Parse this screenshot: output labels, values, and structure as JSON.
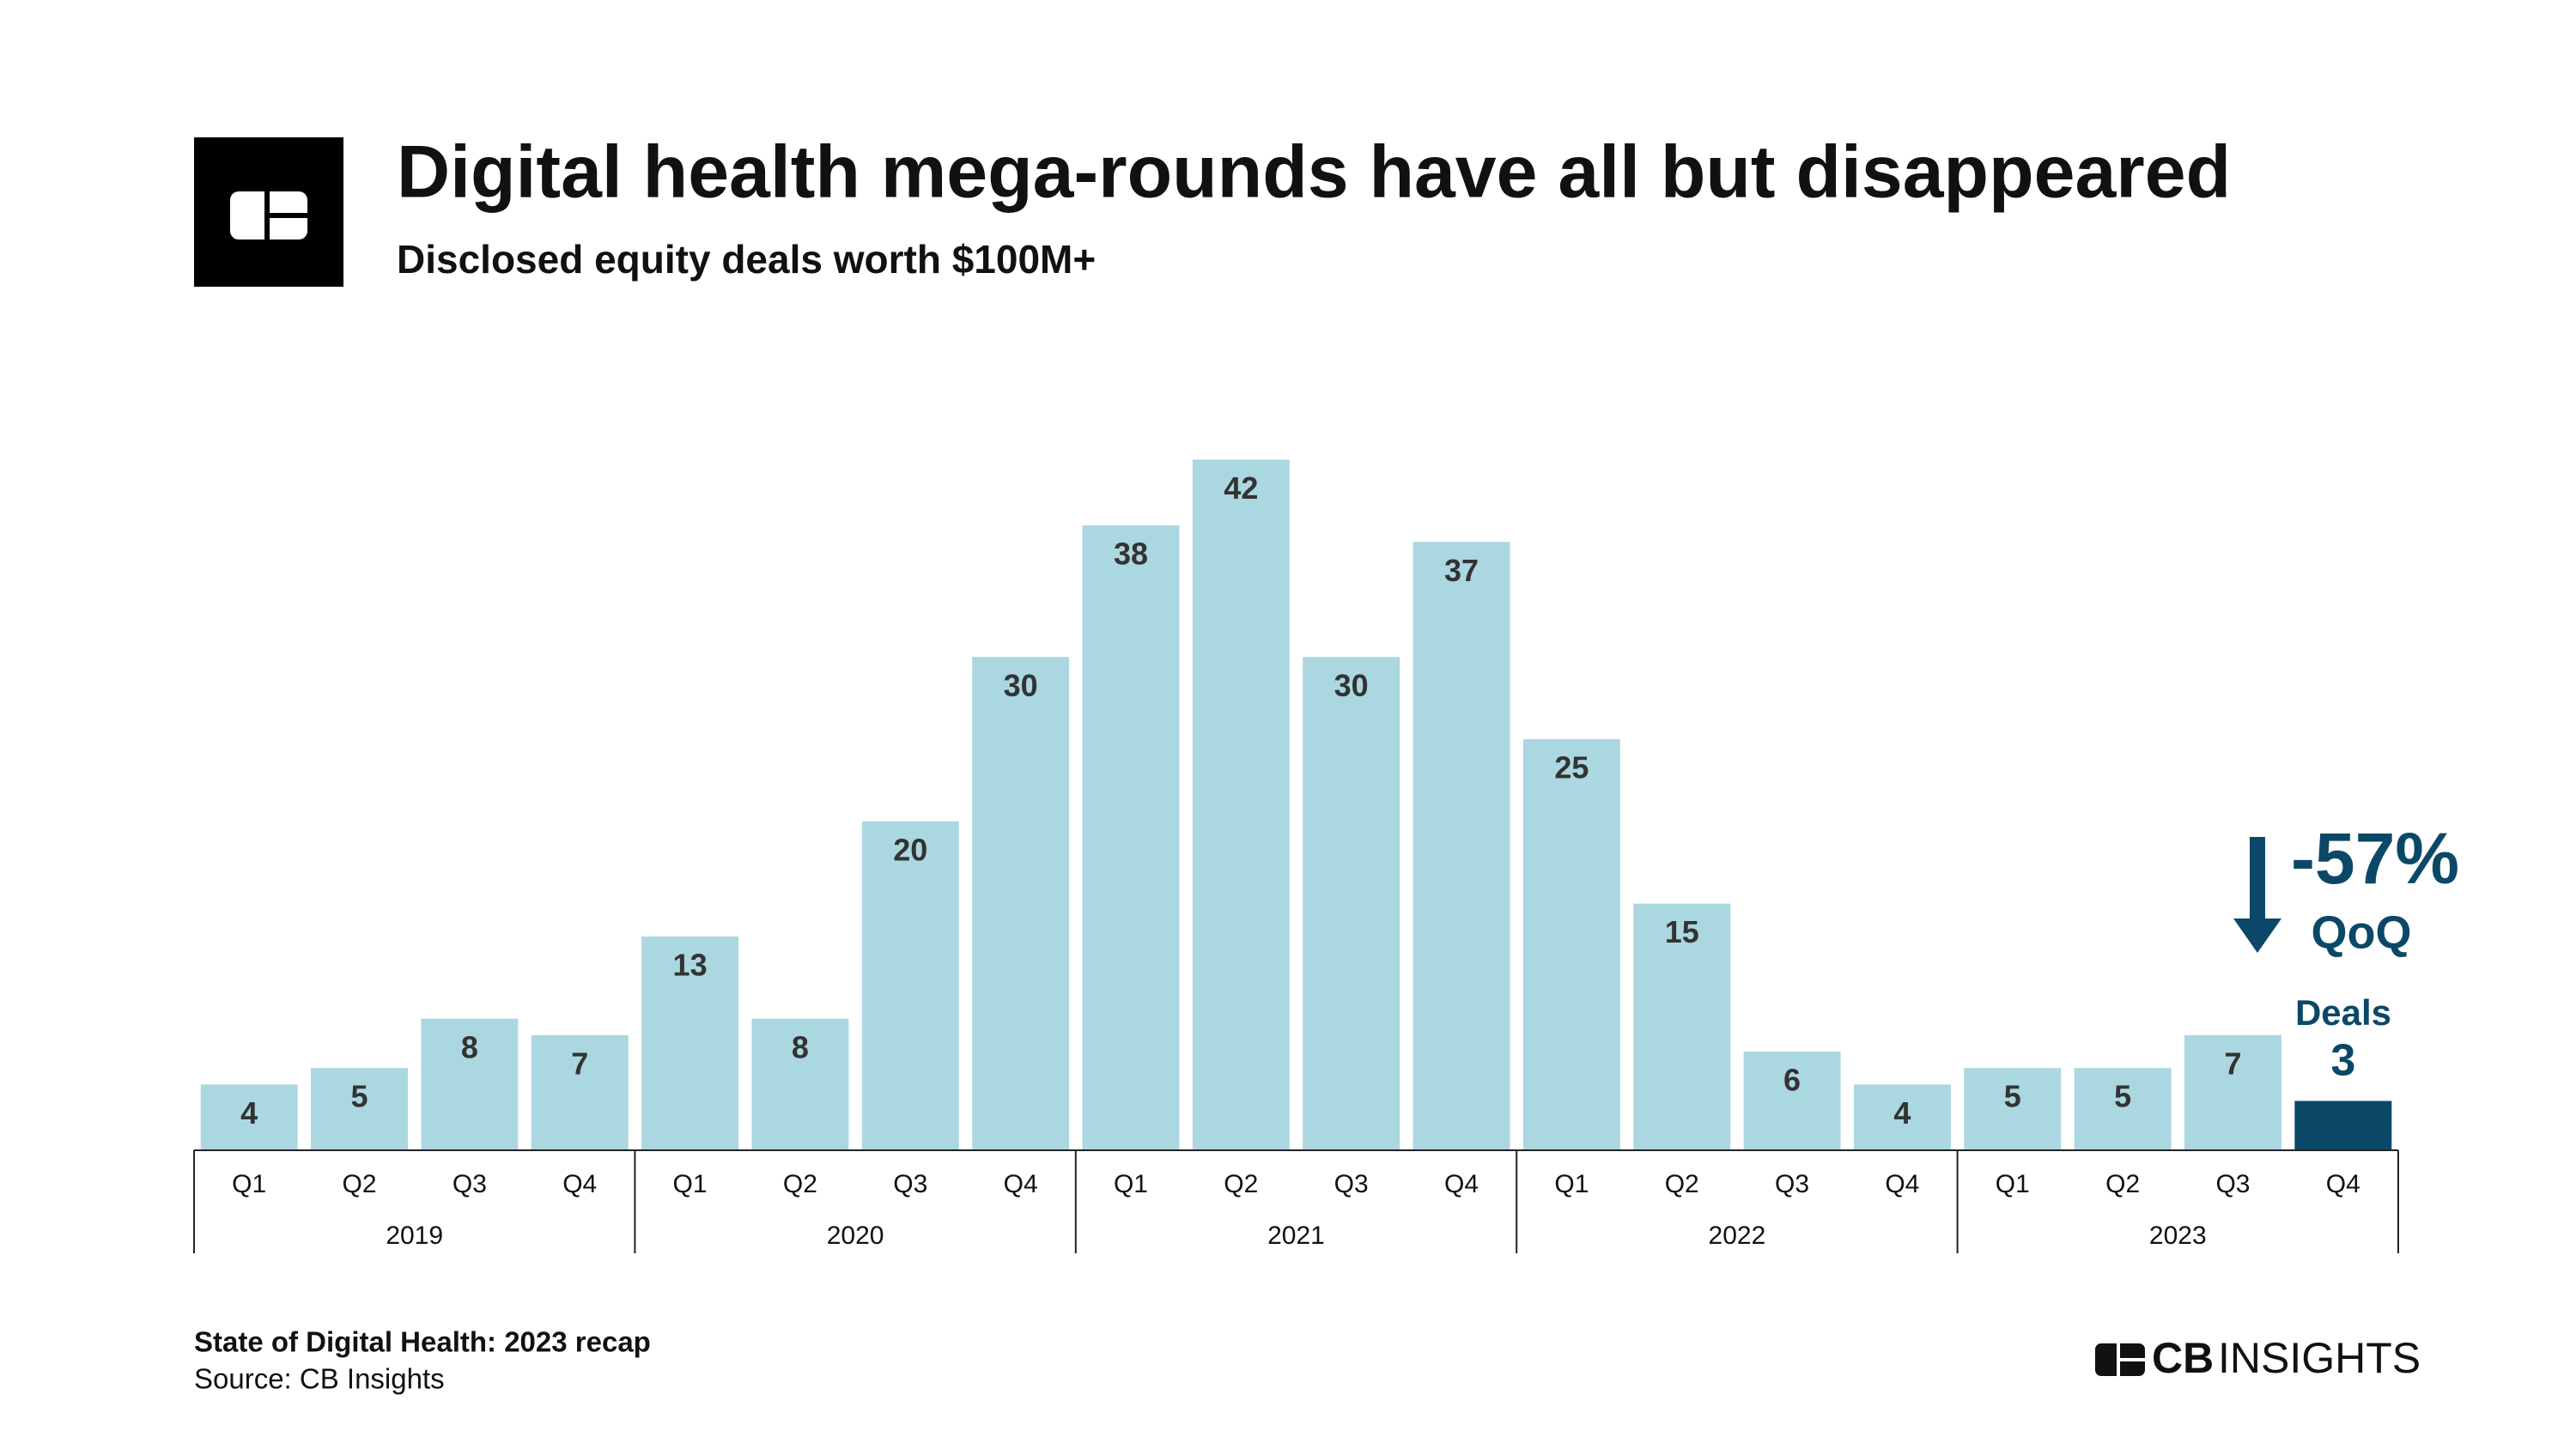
{
  "header": {
    "title": "Digital health mega-rounds have all but disappeared",
    "subtitle": "Disclosed equity deals worth $100M+"
  },
  "chart_data": {
    "type": "bar",
    "categories": [
      "Q1",
      "Q2",
      "Q3",
      "Q4",
      "Q1",
      "Q2",
      "Q3",
      "Q4",
      "Q1",
      "Q2",
      "Q3",
      "Q4",
      "Q1",
      "Q2",
      "Q3",
      "Q4",
      "Q1",
      "Q2",
      "Q3",
      "Q4"
    ],
    "years": [
      "2019",
      "2020",
      "2021",
      "2022",
      "2023"
    ],
    "values": [
      4,
      5,
      8,
      7,
      13,
      8,
      20,
      30,
      38,
      42,
      30,
      37,
      25,
      15,
      6,
      4,
      5,
      5,
      7,
      3
    ],
    "colors": [
      "#abd7e0",
      "#abd7e0",
      "#abd7e0",
      "#abd7e0",
      "#abd7e0",
      "#abd7e0",
      "#abd7e0",
      "#abd7e0",
      "#abd7e0",
      "#abd7e0",
      "#abd7e0",
      "#abd7e0",
      "#abd7e0",
      "#abd7e0",
      "#abd7e0",
      "#abd7e0",
      "#abd7e0",
      "#abd7e0",
      "#abd7e0",
      "#0b4868"
    ],
    "ylim": [
      0,
      45
    ],
    "annotations": {
      "change": "-57%",
      "period": "QoQ",
      "label": "Deals"
    }
  },
  "footer": {
    "report": "State of Digital Health: 2023 recap",
    "source": "Source: CB Insights",
    "brand_bold": "CB",
    "brand_light": "INSIGHTS"
  }
}
